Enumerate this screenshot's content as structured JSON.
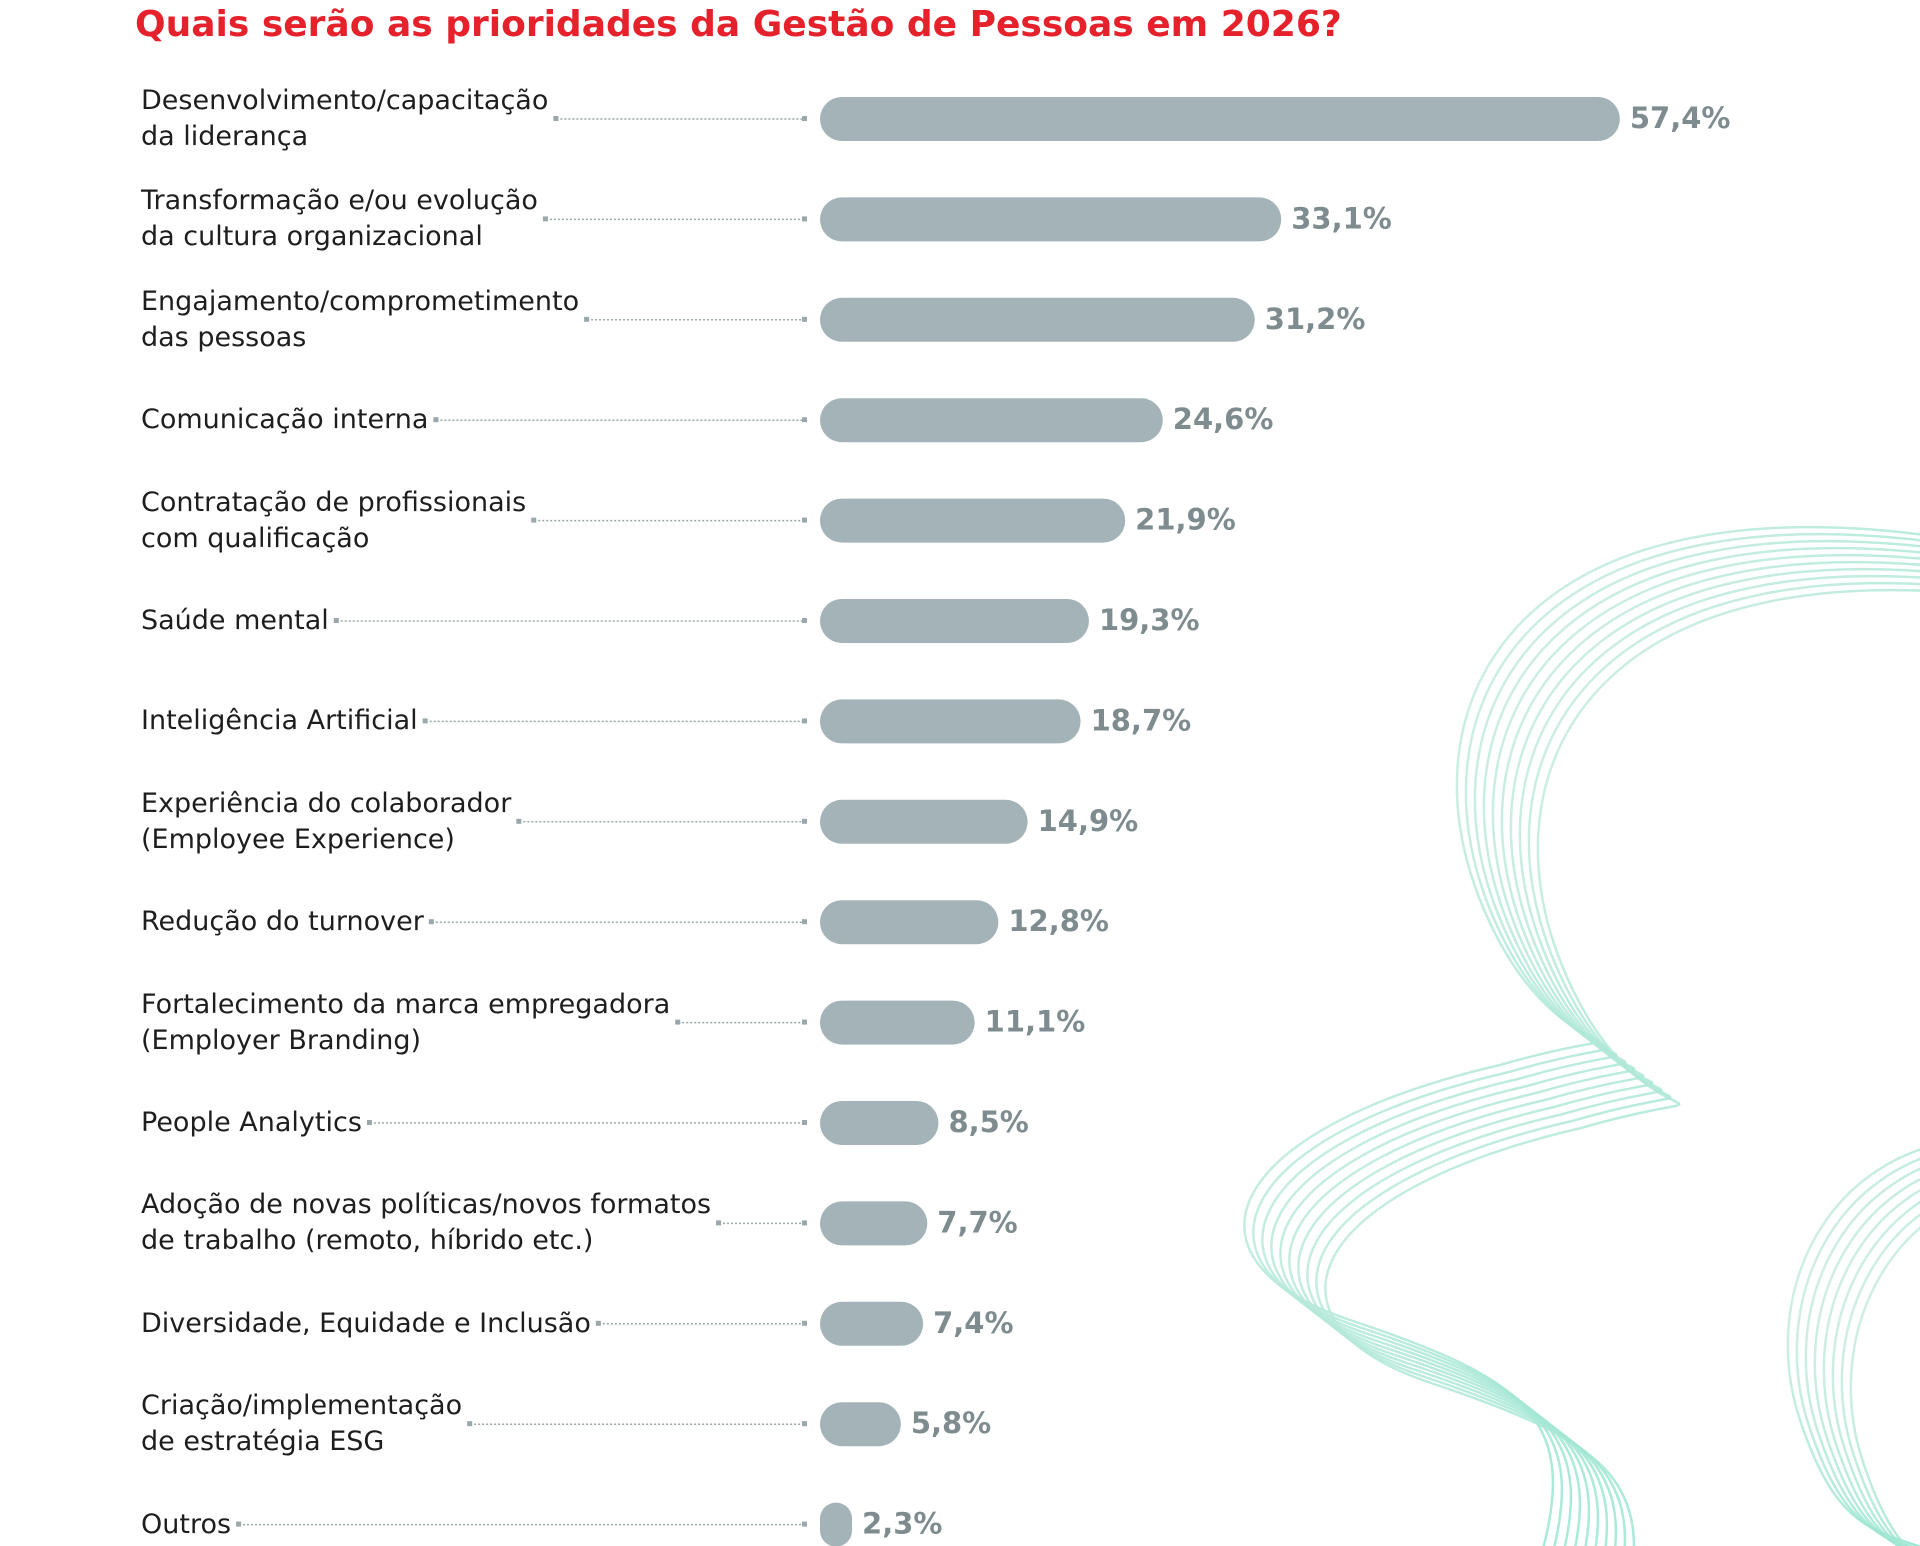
{
  "chart_data": {
    "type": "bar",
    "title": "Quais serão as prioridades da Gestão de Pessoas em 2026?",
    "categories": [
      "Desenvolvimento/capacitação\nda liderança",
      "Transformação e/ou evolução\nda cultura organizacional",
      "Engajamento/comprometimento\ndas pessoas",
      "Comunicação interna",
      "Contratação de profissionais\ncom qualificação",
      "Saúde mental",
      "Inteligência Artificial",
      "Experiência do colaborador\n(Employee Experience)",
      "Redução do turnover",
      "Fortalecimento da marca empregadora\n(Employer Branding)",
      "People Analytics",
      "Adoção de novas políticas/novos formatos\nde trabalho (remoto, híbrido etc.)",
      "Diversidade, Equidade e Inclusão",
      "Criação/implementação\nde estratégia ESG",
      "Outros"
    ],
    "values": [
      57.4,
      33.1,
      31.2,
      24.6,
      21.9,
      19.3,
      18.7,
      14.9,
      12.8,
      11.1,
      8.5,
      7.7,
      7.4,
      5.8,
      2.3
    ],
    "value_labels": [
      "57,4%",
      "33,1%",
      "31,2%",
      "24,6%",
      "21,9%",
      "19,3%",
      "18,7%",
      "14,9%",
      "12,8%",
      "11,1%",
      "8,5%",
      "7,7%",
      "7,4%",
      "5,8%",
      "2,3%"
    ],
    "color": "#a3b3b7"
  }
}
